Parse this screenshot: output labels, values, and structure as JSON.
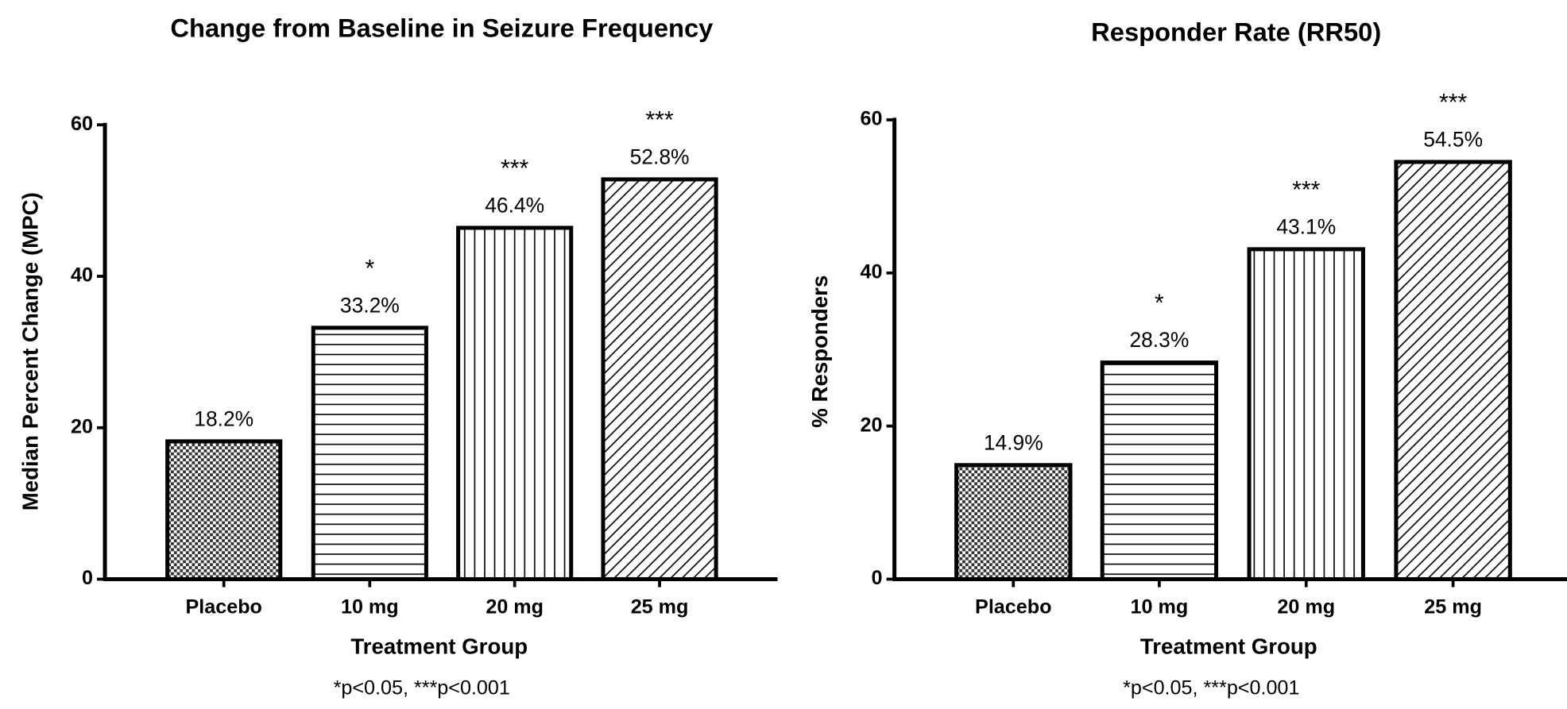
{
  "chart_data": [
    {
      "type": "bar",
      "title": "Change from Baseline in Seizure Frequency",
      "x_label": "Treatment Group",
      "y_label": "Median Percent Change (MPC)",
      "categories": [
        "Placebo",
        "10 mg",
        "20 mg",
        "25 mg"
      ],
      "values": [
        18.2,
        33.2,
        46.4,
        52.8
      ],
      "value_labels": [
        "18.2%",
        "33.2%",
        "46.4%",
        "52.8%"
      ],
      "annotations": [
        null,
        "*",
        "***",
        "***"
      ],
      "patterns": [
        "checker",
        "horizontal",
        "vertical",
        "diagonal"
      ],
      "ylim": [
        0,
        60
      ],
      "yticks": [
        0,
        20,
        40,
        60
      ],
      "footnote": "*p<0.05, ***p<0.001"
    },
    {
      "type": "bar",
      "title": "Responder Rate (RR50)",
      "x_label": "Treatment Group",
      "y_label": "% Responders",
      "categories": [
        "Placebo",
        "10 mg",
        "20 mg",
        "25 mg"
      ],
      "values": [
        14.9,
        28.3,
        43.1,
        54.5
      ],
      "value_labels": [
        "14.9%",
        "28.3%",
        "43.1%",
        "54.5%"
      ],
      "annotations": [
        null,
        "*",
        "***",
        "***"
      ],
      "patterns": [
        "checker",
        "horizontal",
        "vertical",
        "diagonal"
      ],
      "ylim": [
        0,
        60
      ],
      "yticks": [
        0,
        20,
        40,
        60
      ],
      "footnote": "*p<0.05, ***p<0.001"
    }
  ]
}
